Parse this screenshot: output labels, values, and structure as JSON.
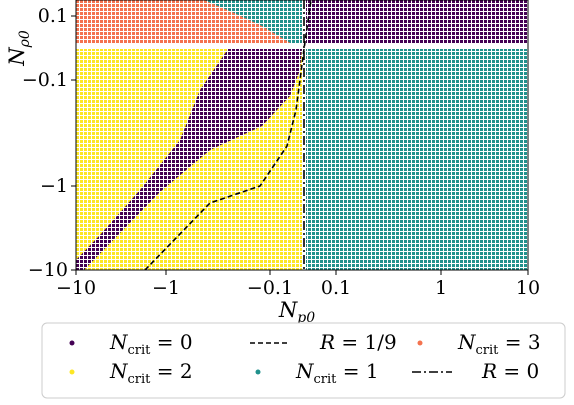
{
  "chart_data": {
    "type": "scatter",
    "title": "",
    "x_axis": {
      "label_symbol": "N",
      "label_subscript": "p0",
      "scale": "symlog",
      "tick_labels": [
        "−10",
        "−1",
        "−0.1",
        "0.1",
        "1",
        "10"
      ],
      "tick_values": [
        -10,
        -1,
        -0.1,
        0.1,
        1,
        10
      ],
      "range": [
        -10,
        10
      ]
    },
    "y_axis": {
      "label_symbol": "N",
      "label_subscript": "ρ0",
      "scale": "symlog",
      "tick_labels": [
        "0.1",
        "−0.1",
        "−1",
        "−10"
      ],
      "tick_values": [
        0.1,
        -0.1,
        -1,
        -10
      ],
      "range": [
        -10,
        0.15
      ]
    },
    "regions": [
      {
        "name": "N_crit = 0",
        "color": "#440154",
        "description": "upper-right quadrant and diagonal band in lower-left quadrant"
      },
      {
        "name": "N_crit = 1",
        "color": "#21918c",
        "description": "lower-right quadrant and thin wedge near x≈-0.05, y≈0.1"
      },
      {
        "name": "N_crit = 2",
        "color": "#fde725",
        "description": "lower-left quadrant outside the N_crit = 0 band"
      },
      {
        "name": "N_crit = 3",
        "color": "#f4734f",
        "description": "upper-left quadrant"
      }
    ],
    "curves": [
      {
        "name": "R = 1/9",
        "style": "dashed",
        "points": [
          [
            -2.0,
            -10
          ],
          [
            -0.4,
            -2.0
          ],
          [
            -0.1,
            -1.0
          ],
          [
            -0.05,
            -0.1
          ],
          [
            -0.04,
            0.15
          ]
        ]
      },
      {
        "name": "R = 0",
        "style": "dashdot",
        "points": [
          [
            0,
            -10
          ],
          [
            0,
            0.15
          ]
        ]
      }
    ],
    "grid": false,
    "legend_position": "bottom"
  },
  "legend": {
    "items": [
      {
        "base": "N",
        "sub": "crit",
        "rest": " = 0",
        "color": "#440154",
        "kind": "dot"
      },
      {
        "base": "N",
        "sub": "crit",
        "rest": " = 2",
        "color": "#fde725",
        "kind": "dot"
      },
      {
        "base": "R",
        "sub": "",
        "rest": " = 1/9",
        "color": "#000000",
        "kind": "dash"
      },
      {
        "base": "N",
        "sub": "crit",
        "rest": " = 1",
        "color": "#21918c",
        "kind": "dot"
      },
      {
        "base": "N",
        "sub": "crit",
        "rest": " = 3",
        "color": "#f4734f",
        "kind": "dot"
      },
      {
        "base": "R",
        "sub": "",
        "rest": " = 0",
        "color": "#000000",
        "kind": "dashdot"
      }
    ]
  }
}
